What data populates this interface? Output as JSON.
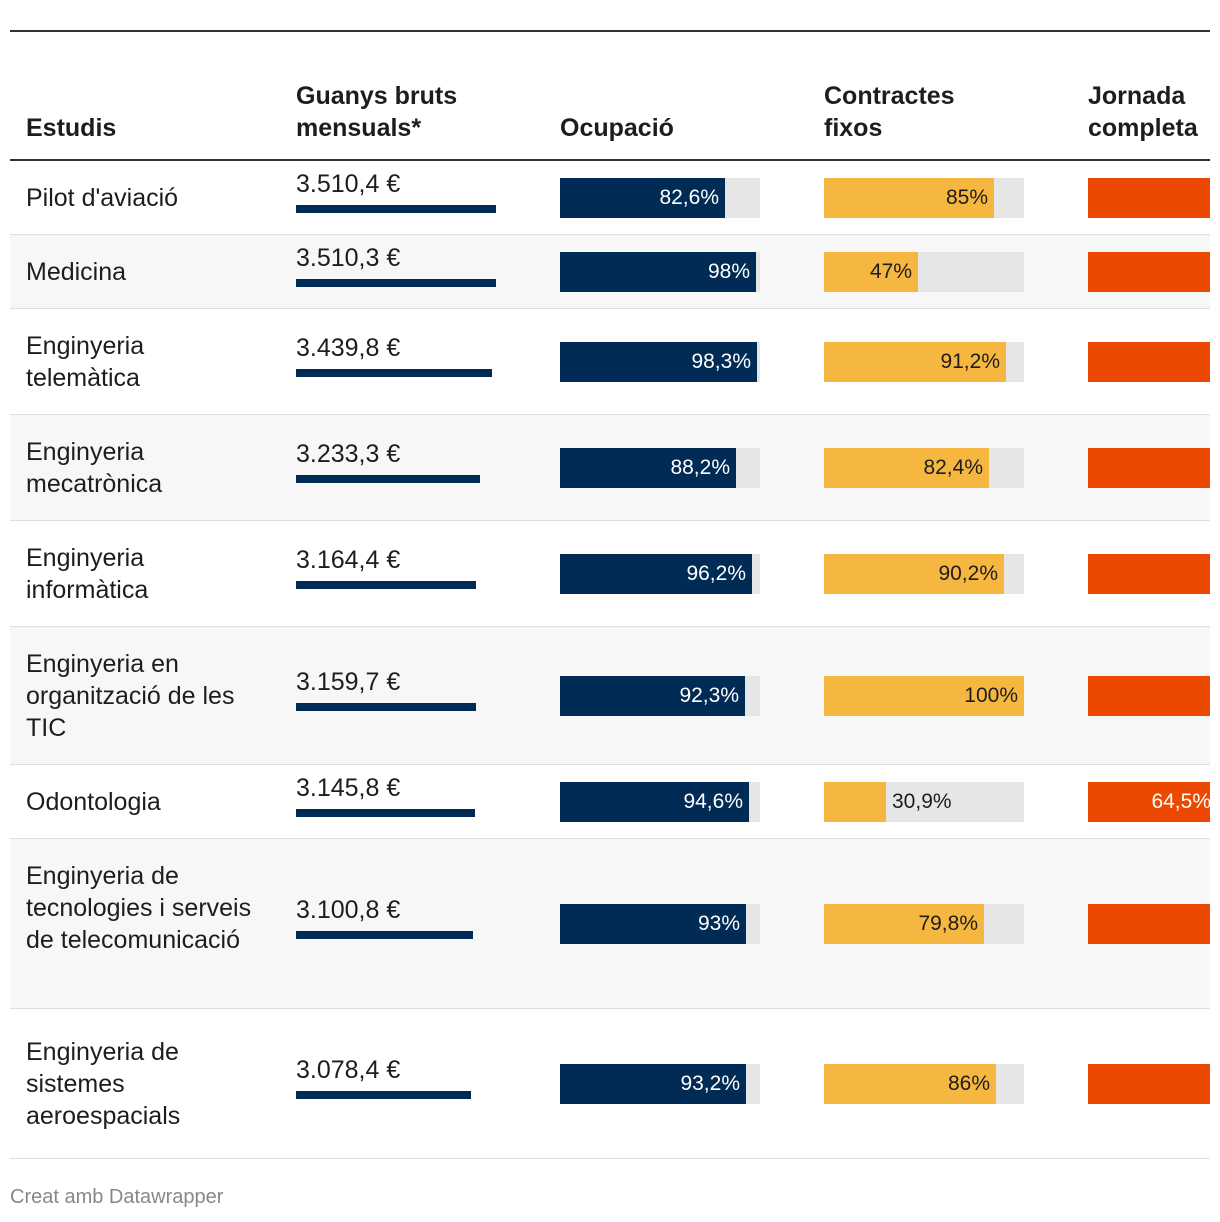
{
  "chart_data": {
    "type": "table",
    "columns": {
      "studies": "Estudis",
      "wage": "Guanys bruts mensuals*",
      "employment": "Ocupació",
      "permanent": "Contractes fixos",
      "fulltime": "Jornada completa"
    },
    "rows": [
      {
        "name": "Pilot d'aviació",
        "wage": 3510.4,
        "wage_label": "3.510,4 €",
        "employment": 82.6,
        "employment_label": "82,6%",
        "permanent": 85,
        "permanent_label": "85%",
        "fulltime": null,
        "fulltime_label": ""
      },
      {
        "name": "Medicina",
        "wage": 3510.3,
        "wage_label": "3.510,3 €",
        "employment": 98,
        "employment_label": "98%",
        "permanent": 47,
        "permanent_label": "47%",
        "fulltime": null,
        "fulltime_label": ""
      },
      {
        "name": "Enginyeria telemàtica",
        "wage": 3439.8,
        "wage_label": "3.439,8 €",
        "employment": 98.3,
        "employment_label": "98,3%",
        "permanent": 91.2,
        "permanent_label": "91,2%",
        "fulltime": null,
        "fulltime_label": ""
      },
      {
        "name": "Enginyeria mecatrònica",
        "wage": 3233.3,
        "wage_label": "3.233,3 €",
        "employment": 88.2,
        "employment_label": "88,2%",
        "permanent": 82.4,
        "permanent_label": "82,4%",
        "fulltime": null,
        "fulltime_label": ""
      },
      {
        "name": "Enginyeria informàtica",
        "wage": 3164.4,
        "wage_label": "3.164,4 €",
        "employment": 96.2,
        "employment_label": "96,2%",
        "permanent": 90.2,
        "permanent_label": "90,2%",
        "fulltime": null,
        "fulltime_label": ""
      },
      {
        "name": "Enginyeria en organització de les TIC",
        "wage": 3159.7,
        "wage_label": "3.159,7 €",
        "employment": 92.3,
        "employment_label": "92,3%",
        "permanent": 100,
        "permanent_label": "100%",
        "fulltime": null,
        "fulltime_label": ""
      },
      {
        "name": "Odontologia",
        "wage": 3145.8,
        "wage_label": "3.145,8 €",
        "employment": 94.6,
        "employment_label": "94,6%",
        "permanent": 30.9,
        "permanent_label": "30,9%",
        "fulltime": 64.5,
        "fulltime_label": "64,5%"
      },
      {
        "name": "Enginyeria de tecnologies i serveis de telecomunicació",
        "wage": 3100.8,
        "wage_label": "3.100,8 €",
        "employment": 93,
        "employment_label": "93%",
        "permanent": 79.8,
        "permanent_label": "79,8%",
        "fulltime": null,
        "fulltime_label": ""
      },
      {
        "name": "Enginyeria de sistemes aeroespacials",
        "wage": 3078.4,
        "wage_label": "3.078,4 €",
        "employment": 93.2,
        "employment_label": "93,2%",
        "permanent": 86,
        "permanent_label": "86%",
        "fulltime": null,
        "fulltime_label": ""
      }
    ],
    "wage_max": 3510.4,
    "colors": {
      "wage": "#002b55",
      "employment": "#002b55",
      "permanent": "#f5b740",
      "fulltime": "#ec4800",
      "track": "#e6e6e6"
    }
  },
  "footer": "Creat amb Datawrapper"
}
